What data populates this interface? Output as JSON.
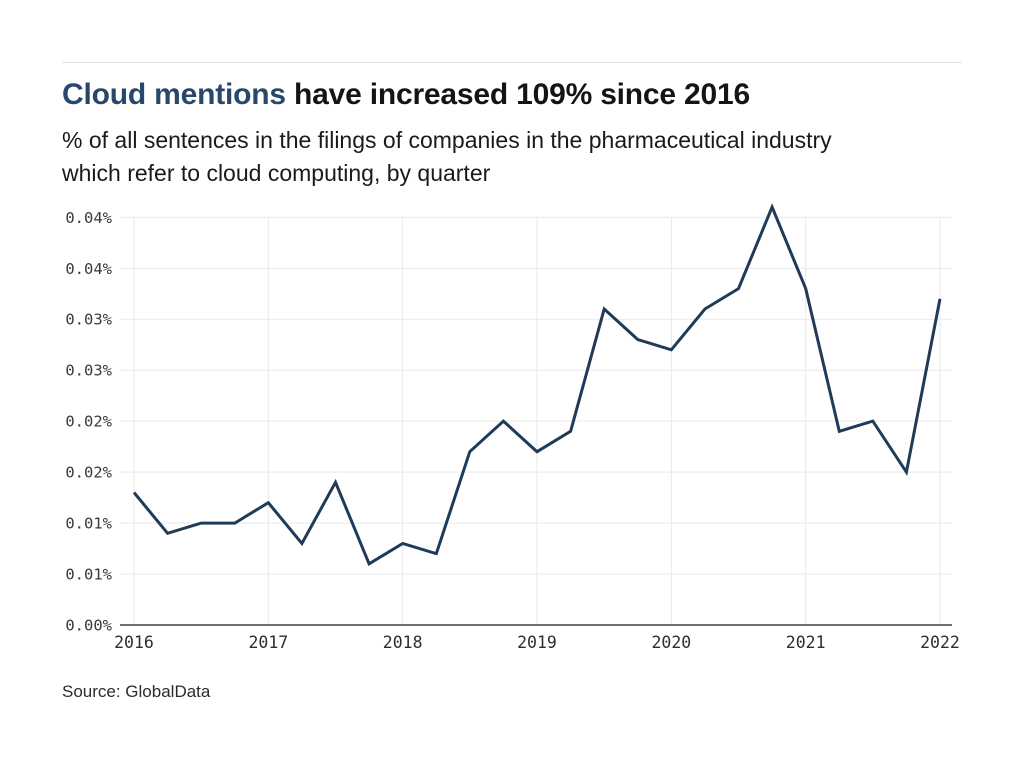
{
  "header": {
    "title_accent": "Cloud mentions",
    "title_rest": " have increased 109% since 2016",
    "subtitle_lines": [
      "% of all sentences in the filings of companies in the pharmaceutical industry",
      "which refer to cloud computing, by quarter"
    ]
  },
  "footer": {
    "source": "Source: GlobalData"
  },
  "chart_data": {
    "type": "line",
    "title": "Cloud mentions have increased 109% since 2016",
    "subtitle": "% of all sentences in the filings of companies in the pharmaceutical industry which refer to cloud computing, by quarter",
    "x": [
      "2016 Q1",
      "2016 Q2",
      "2016 Q3",
      "2016 Q4",
      "2017 Q1",
      "2017 Q2",
      "2017 Q3",
      "2017 Q4",
      "2018 Q1",
      "2018 Q2",
      "2018 Q3",
      "2018 Q4",
      "2019 Q1",
      "2019 Q2",
      "2019 Q3",
      "2019 Q4",
      "2020 Q1",
      "2020 Q2",
      "2020 Q3",
      "2020 Q4",
      "2021 Q1",
      "2021 Q2",
      "2021 Q3",
      "2021 Q4",
      "2022 Q1"
    ],
    "series": [
      {
        "name": "% of sentences referring to cloud computing",
        "values": [
          0.013,
          0.009,
          0.01,
          0.01,
          0.012,
          0.008,
          0.014,
          0.006,
          0.008,
          0.007,
          0.017,
          0.02,
          0.017,
          0.019,
          0.031,
          0.028,
          0.027,
          0.031,
          0.033,
          0.041,
          0.033,
          0.019,
          0.02,
          0.015,
          0.032
        ]
      }
    ],
    "x_tick_labels": [
      "2016",
      "2017",
      "2018",
      "2019",
      "2020",
      "2021",
      "2022"
    ],
    "y_tick_labels": [
      "0.04%",
      "0.04%",
      "0.03%",
      "0.03%",
      "0.02%",
      "0.02%",
      "0.01%",
      "0.01%",
      "0.00%"
    ],
    "ylim": [
      0,
      0.04
    ],
    "unit": "%",
    "grid": true,
    "legend": "none",
    "line_color": "#1f3b57",
    "gridline_color": "#e9e9e9",
    "axis_line_color": "#6f6f6f",
    "source": "Source: GlobalData"
  }
}
